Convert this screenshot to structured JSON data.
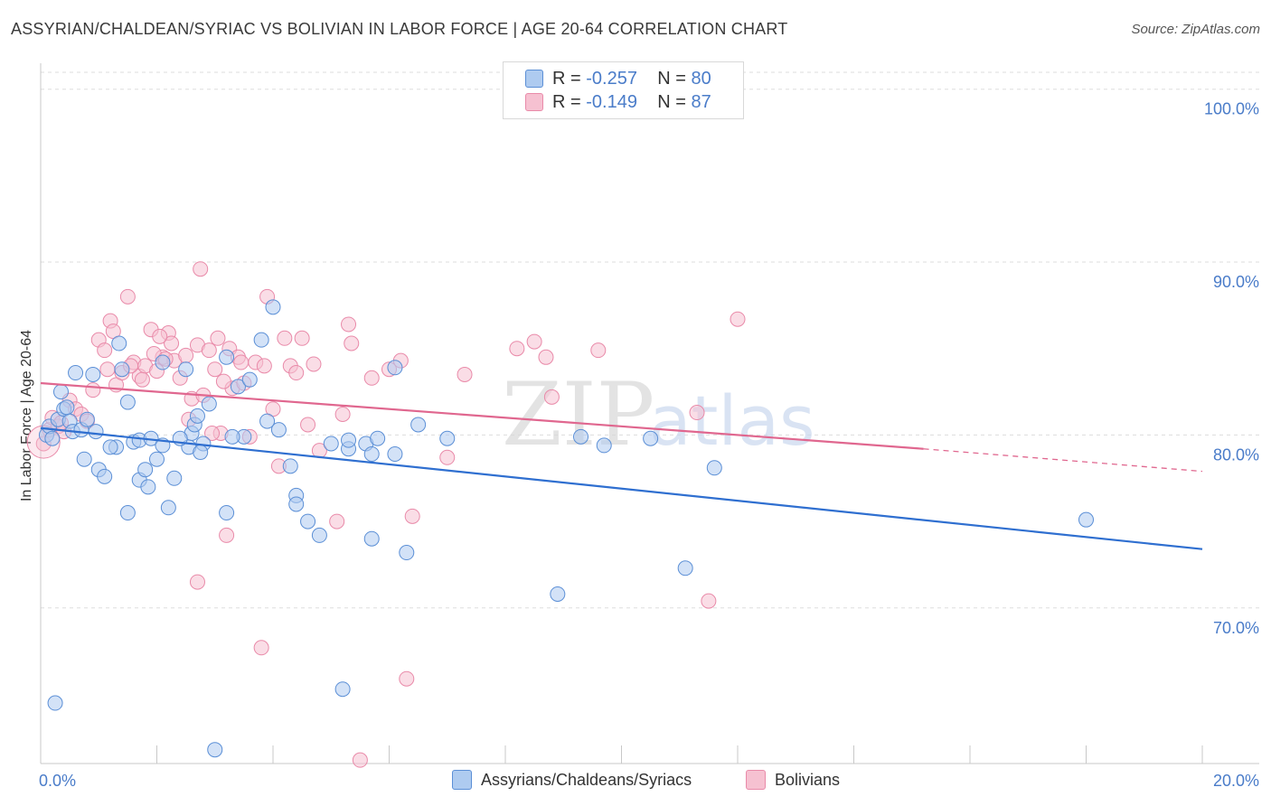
{
  "title": "ASSYRIAN/CHALDEAN/SYRIAC VS BOLIVIAN IN LABOR FORCE | AGE 20-64 CORRELATION CHART",
  "source": "Source: ZipAtlas.com",
  "colors": {
    "blue_fill": "#aecbf0",
    "blue_stroke": "#5b8fd6",
    "blue_line": "#2f6fd0",
    "pink_fill": "#f6c1d1",
    "pink_stroke": "#e98aa9",
    "pink_line": "#e0678f",
    "axis_text": "#4a7cc9",
    "grid": "#dddddd"
  },
  "legend_stats": [
    {
      "r_label": "R =",
      "r_value": "-0.257",
      "n_label": "N =",
      "n_value": "80",
      "color": "blue"
    },
    {
      "r_label": "R =",
      "r_value": "-0.149",
      "n_label": "N =",
      "n_value": "87",
      "color": "pink"
    }
  ],
  "watermark": {
    "zip": "ZIP",
    "atlas": "atlas"
  },
  "chart_data": {
    "type": "scatter",
    "title": "ASSYRIAN/CHALDEAN/SYRIAC VS BOLIVIAN IN LABOR FORCE | AGE 20-64 CORRELATION CHART",
    "ylabel": "In Labor Force | Age 20-64",
    "xlabel": "",
    "xlim": [
      0,
      20
    ],
    "ylim": [
      61.0,
      101.5
    ],
    "x_tick_labels": [
      "0.0%",
      "20.0%"
    ],
    "y_ticks": [
      70,
      80,
      90,
      100
    ],
    "y_tick_labels": [
      "70.0%",
      "80.0%",
      "90.0%",
      "100.0%"
    ],
    "grid": true,
    "legend": "bottom",
    "series": [
      {
        "name": "Assyrians/Chaldeans/Syriacs",
        "color": "blue",
        "trend": {
          "x0": 0,
          "y0": 80.4,
          "x1": 20,
          "y1": 73.4
        },
        "points": [
          [
            0.1,
            80.0
          ],
          [
            0.15,
            80.5
          ],
          [
            0.2,
            79.8
          ],
          [
            0.3,
            80.9
          ],
          [
            0.35,
            82.5
          ],
          [
            0.4,
            81.5
          ],
          [
            0.45,
            81.6
          ],
          [
            0.5,
            80.8
          ],
          [
            0.55,
            80.2
          ],
          [
            0.6,
            83.6
          ],
          [
            0.7,
            80.3
          ],
          [
            0.75,
            78.6
          ],
          [
            0.8,
            80.9
          ],
          [
            0.9,
            83.5
          ],
          [
            1.0,
            78.0
          ],
          [
            1.1,
            77.6
          ],
          [
            1.3,
            79.3
          ],
          [
            1.35,
            85.3
          ],
          [
            1.4,
            83.8
          ],
          [
            1.5,
            75.5
          ],
          [
            1.5,
            81.9
          ],
          [
            1.6,
            79.6
          ],
          [
            1.7,
            79.7
          ],
          [
            1.7,
            77.4
          ],
          [
            1.8,
            78.0
          ],
          [
            1.85,
            77.0
          ],
          [
            1.9,
            79.8
          ],
          [
            2.0,
            78.6
          ],
          [
            2.1,
            84.2
          ],
          [
            2.1,
            79.4
          ],
          [
            2.2,
            75.8
          ],
          [
            2.3,
            77.5
          ],
          [
            2.5,
            83.8
          ],
          [
            2.55,
            79.3
          ],
          [
            2.6,
            80.1
          ],
          [
            2.65,
            80.6
          ],
          [
            2.7,
            81.1
          ],
          [
            2.8,
            79.5
          ],
          [
            2.9,
            81.8
          ],
          [
            3.0,
            61.8
          ],
          [
            3.2,
            75.5
          ],
          [
            3.2,
            84.5
          ],
          [
            3.4,
            82.8
          ],
          [
            3.5,
            79.9
          ],
          [
            3.6,
            83.2
          ],
          [
            3.8,
            85.5
          ],
          [
            3.9,
            80.8
          ],
          [
            4.0,
            87.4
          ],
          [
            4.3,
            78.2
          ],
          [
            4.4,
            76.5
          ],
          [
            4.4,
            76.0
          ],
          [
            4.6,
            75.0
          ],
          [
            4.8,
            74.2
          ],
          [
            5.0,
            79.5
          ],
          [
            5.2,
            65.3
          ],
          [
            5.3,
            79.2
          ],
          [
            5.3,
            79.7
          ],
          [
            5.6,
            79.5
          ],
          [
            5.7,
            78.9
          ],
          [
            5.7,
            74.0
          ],
          [
            5.8,
            79.8
          ],
          [
            6.1,
            83.9
          ],
          [
            6.1,
            78.9
          ],
          [
            6.3,
            73.2
          ],
          [
            6.5,
            80.6
          ],
          [
            7.0,
            79.8
          ],
          [
            8.9,
            70.8
          ],
          [
            9.3,
            79.9
          ],
          [
            9.7,
            79.4
          ],
          [
            10.5,
            79.8
          ],
          [
            11.1,
            72.3
          ],
          [
            11.6,
            78.1
          ],
          [
            18.0,
            75.1
          ],
          [
            0.25,
            64.5
          ],
          [
            2.4,
            79.8
          ],
          [
            4.1,
            80.3
          ],
          [
            1.2,
            79.3
          ],
          [
            0.95,
            80.2
          ],
          [
            3.3,
            79.9
          ],
          [
            2.75,
            79.0
          ]
        ]
      },
      {
        "name": "Bolivians",
        "color": "pink",
        "trend": {
          "x0": 0,
          "y0": 83.0,
          "x1": 15.2,
          "y1": 79.2,
          "dash_x1": 20,
          "dash_y1": 77.9
        },
        "points": [
          [
            0.05,
            79.5
          ],
          [
            0.15,
            80.3
          ],
          [
            0.2,
            81.0
          ],
          [
            0.3,
            80.5
          ],
          [
            0.4,
            80.2
          ],
          [
            0.5,
            82.0
          ],
          [
            0.6,
            81.5
          ],
          [
            0.7,
            81.2
          ],
          [
            0.8,
            80.8
          ],
          [
            0.9,
            82.6
          ],
          [
            1.0,
            85.5
          ],
          [
            1.1,
            84.9
          ],
          [
            1.2,
            86.6
          ],
          [
            1.25,
            86.0
          ],
          [
            1.3,
            82.9
          ],
          [
            1.4,
            83.6
          ],
          [
            1.5,
            88.0
          ],
          [
            1.6,
            84.2
          ],
          [
            1.7,
            83.4
          ],
          [
            1.75,
            83.2
          ],
          [
            1.8,
            84.0
          ],
          [
            1.9,
            86.1
          ],
          [
            2.0,
            83.7
          ],
          [
            2.1,
            84.5
          ],
          [
            2.2,
            85.9
          ],
          [
            2.25,
            85.3
          ],
          [
            2.3,
            84.3
          ],
          [
            2.4,
            83.3
          ],
          [
            2.5,
            84.6
          ],
          [
            2.55,
            80.9
          ],
          [
            2.6,
            82.1
          ],
          [
            2.7,
            85.2
          ],
          [
            2.75,
            89.6
          ],
          [
            2.8,
            82.3
          ],
          [
            2.9,
            84.9
          ],
          [
            3.0,
            83.8
          ],
          [
            3.05,
            85.6
          ],
          [
            3.1,
            80.1
          ],
          [
            3.2,
            74.2
          ],
          [
            3.25,
            85.0
          ],
          [
            3.3,
            82.7
          ],
          [
            3.4,
            84.5
          ],
          [
            3.5,
            83.0
          ],
          [
            3.6,
            79.9
          ],
          [
            3.7,
            84.2
          ],
          [
            3.8,
            67.7
          ],
          [
            3.85,
            84.0
          ],
          [
            3.9,
            88.0
          ],
          [
            4.0,
            81.5
          ],
          [
            4.1,
            78.2
          ],
          [
            4.2,
            85.6
          ],
          [
            4.3,
            84.0
          ],
          [
            4.4,
            83.6
          ],
          [
            4.5,
            85.6
          ],
          [
            4.6,
            80.6
          ],
          [
            4.8,
            79.1
          ],
          [
            5.1,
            75.0
          ],
          [
            5.2,
            81.2
          ],
          [
            5.3,
            86.4
          ],
          [
            5.35,
            85.3
          ],
          [
            5.5,
            61.2
          ],
          [
            5.7,
            83.3
          ],
          [
            6.0,
            83.8
          ],
          [
            6.2,
            84.3
          ],
          [
            6.3,
            65.9
          ],
          [
            6.4,
            75.3
          ],
          [
            7.0,
            78.7
          ],
          [
            7.3,
            83.5
          ],
          [
            8.2,
            85.0
          ],
          [
            8.5,
            85.4
          ],
          [
            8.7,
            84.5
          ],
          [
            8.8,
            82.2
          ],
          [
            9.6,
            84.9
          ],
          [
            11.3,
            81.3
          ],
          [
            11.5,
            70.4
          ],
          [
            12.0,
            86.7
          ],
          [
            2.7,
            71.5
          ],
          [
            1.95,
            84.7
          ],
          [
            0.35,
            80.7
          ],
          [
            1.15,
            83.8
          ],
          [
            2.15,
            84.4
          ],
          [
            3.45,
            84.2
          ],
          [
            2.95,
            80.1
          ],
          [
            3.15,
            83.1
          ],
          [
            4.7,
            84.1
          ],
          [
            1.55,
            84.0
          ],
          [
            2.05,
            85.7
          ]
        ]
      }
    ]
  },
  "bottom_legend": [
    {
      "label": "Assyrians/Chaldeans/Syriacs",
      "color": "blue"
    },
    {
      "label": "Bolivians",
      "color": "pink"
    }
  ]
}
